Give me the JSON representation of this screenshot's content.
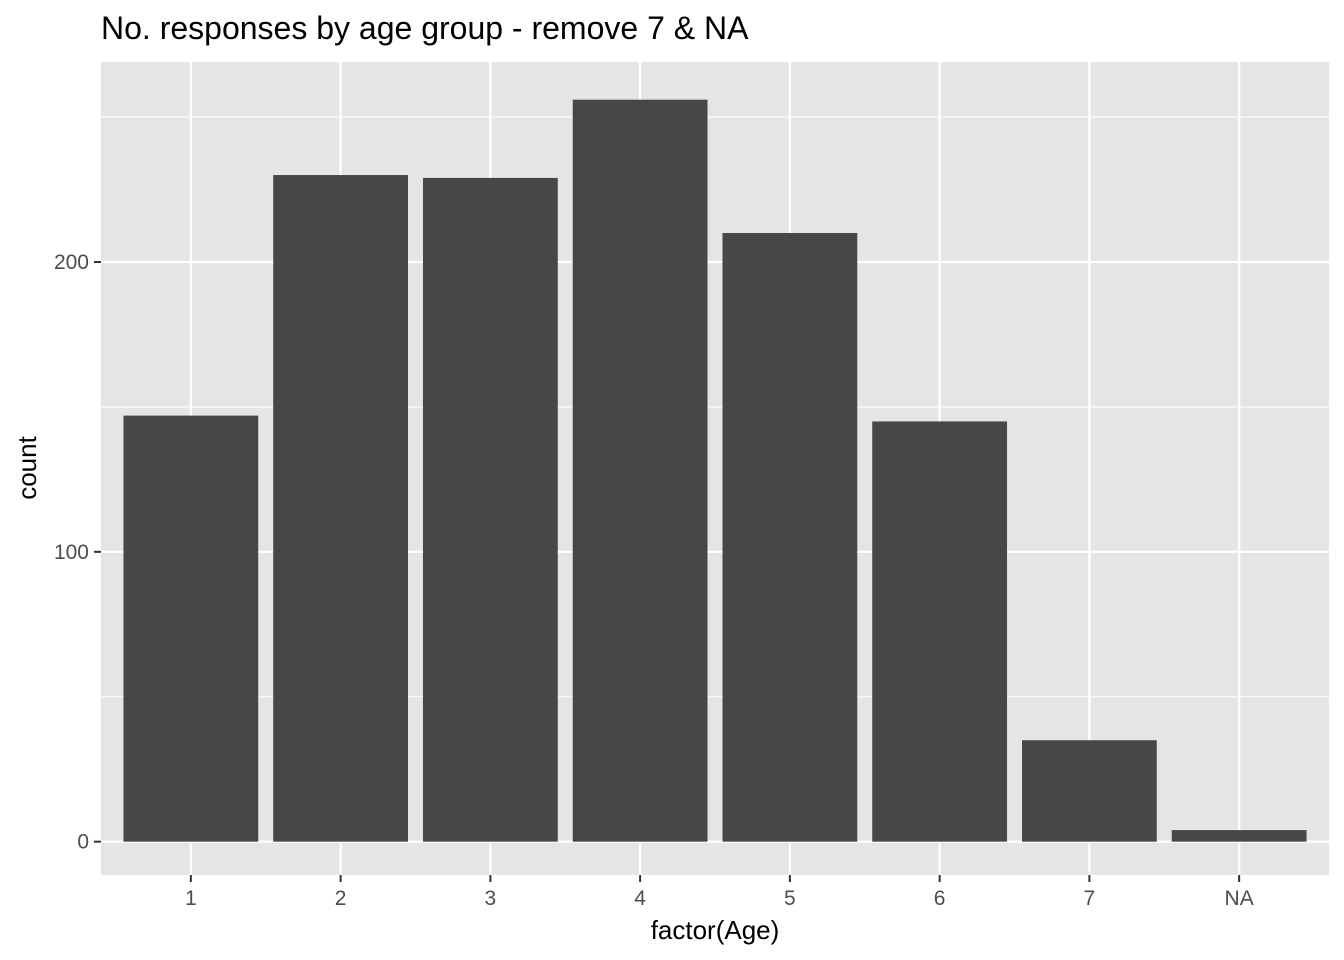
{
  "chart_data": {
    "type": "bar",
    "title": "No. responses by age group - remove 7 & NA",
    "xlabel": "factor(Age)",
    "ylabel": "count",
    "categories": [
      "1",
      "2",
      "3",
      "4",
      "5",
      "6",
      "7",
      "NA"
    ],
    "values": [
      147,
      230,
      229,
      256,
      210,
      145,
      35,
      4
    ],
    "y_ticks": [
      0,
      100,
      200
    ],
    "y_tick_labels": [
      "0",
      "100",
      "200"
    ],
    "ylim": [
      -11.5,
      269
    ],
    "grid": true,
    "legend": "none",
    "colors": {
      "bar": "#474747",
      "panel": "#e5e5e5",
      "grid": "#ffffff",
      "tick_text": "#4d4d4d"
    }
  }
}
